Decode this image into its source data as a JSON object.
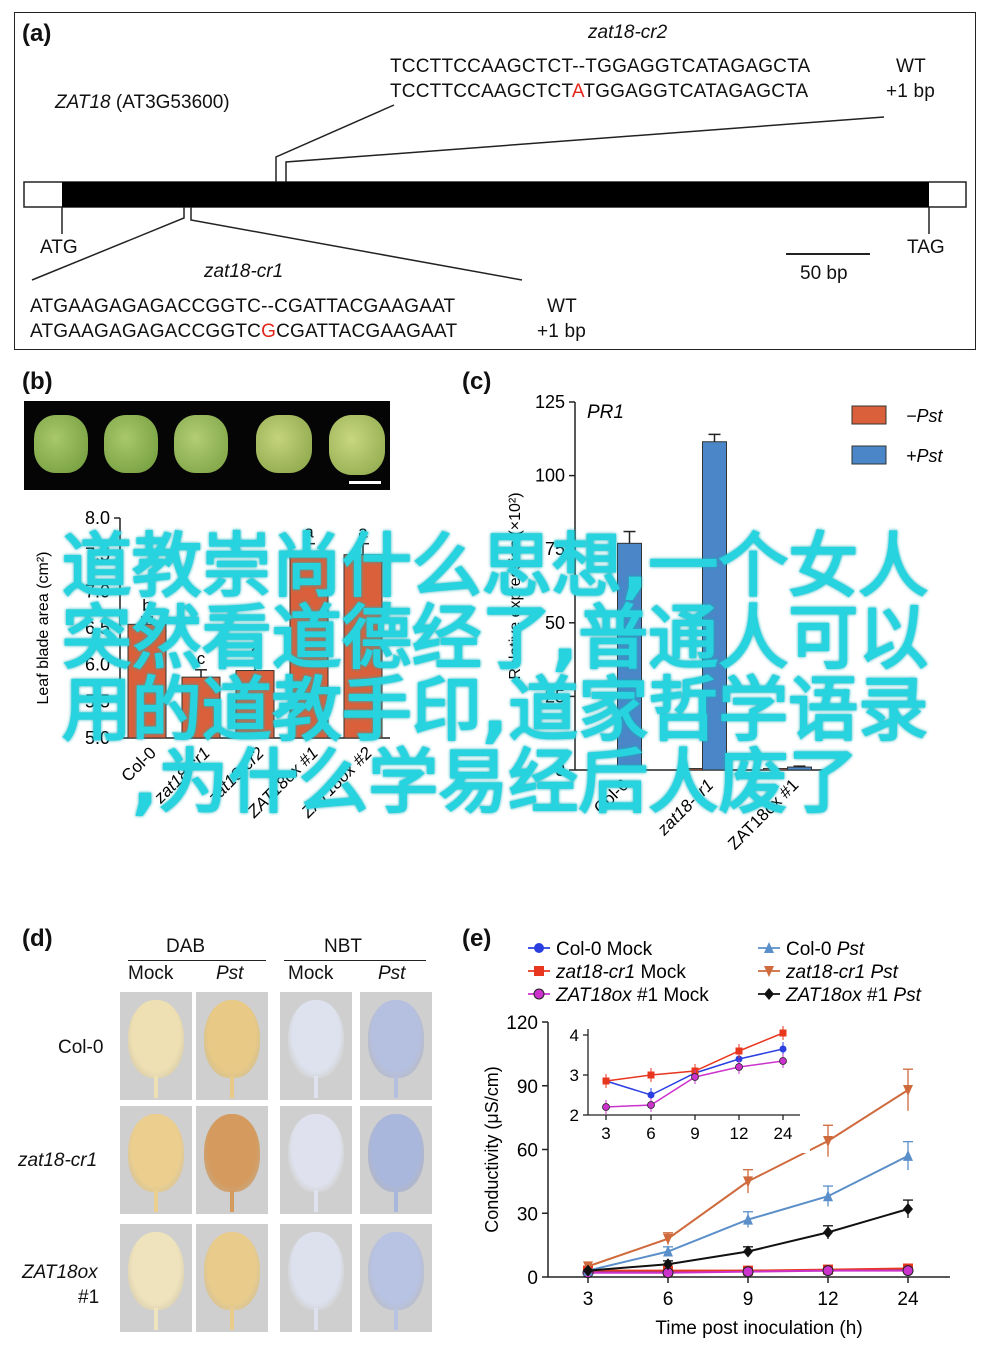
{
  "panels": {
    "a": "(a)",
    "b": "(b)",
    "c": "(c)",
    "d": "(d)",
    "e": "(e)"
  },
  "panel_a": {
    "gene_name": "ZAT18",
    "gene_locus": "(AT3G53600)",
    "start_codon": "ATG",
    "stop_codon": "TAG",
    "scale_bar": "50 bp",
    "cr2": {
      "name": "zat18-cr2",
      "wt_seq_left": "TCCTTCCAAGCTCT--TGGAGGTCATAGAGCTA",
      "mut_seq_left": "TCCTTCCAAGCTCT",
      "mut_insert": "A",
      "mut_seq_right": "TGGAGGTCATAGAGCTA",
      "wt_label": "WT",
      "mut_label": "+1 bp"
    },
    "cr1": {
      "name": "zat18-cr1",
      "wt_seq": "ATGAAGAGAGACCGGTC--CGATTACGAAGAAT",
      "mut_seq_left": "ATGAAGAGAGACCGGTC",
      "mut_insert": "G",
      "mut_seq_right": "CGATTACGAAGAAT",
      "wt_label": "WT",
      "mut_label": "+1 bp"
    }
  },
  "panel_b": {
    "chart_data": {
      "type": "bar",
      "categories": [
        "Col-0",
        "zat18-cr1",
        "zat18-cr2",
        "ZAT18ox #1",
        "ZAT18ox #2"
      ],
      "values": [
        6.55,
        5.83,
        5.92,
        7.5,
        7.5
      ],
      "errors": [
        0.1,
        0.1,
        0.1,
        0.15,
        0.15
      ],
      "letters": [
        "b",
        "c",
        "c",
        "a",
        "a"
      ],
      "ylabel": "Leaf blade area (cm²)",
      "ylim": [
        5.0,
        8.0
      ],
      "yticks": [
        "5.0",
        "5.5",
        "6.0",
        "6.5",
        "7.0",
        "7.5",
        "8.0"
      ],
      "color": "#d9603b"
    }
  },
  "panel_c": {
    "chart_data": {
      "type": "bar",
      "title": "PR1",
      "categories": [
        "Col-0",
        "zat18-cr1",
        "ZAT18ox #1"
      ],
      "series": [
        {
          "name": "−Pst",
          "color": "#d9603b",
          "values": [
            0.5,
            0.5,
            0.5
          ]
        },
        {
          "name": "+Pst",
          "color": "#4a86c8",
          "values": [
            77,
            111.5,
            1
          ]
        }
      ],
      "errors_plus": [
        4,
        2.5,
        0.3
      ],
      "ylabel": "Relative expression (×10²)",
      "ylim": [
        0,
        125
      ],
      "yticks": [
        "0",
        "25",
        "50",
        "75",
        "100",
        "125"
      ]
    }
  },
  "panel_d": {
    "group_dab": "DAB",
    "group_nbt": "NBT",
    "col_labels": [
      "Mock",
      "Pst",
      "Mock",
      "Pst"
    ],
    "row_labels": [
      "Col-0",
      "zat18-cr1",
      "ZAT18ox",
      "#1"
    ]
  },
  "panel_e": {
    "chart_data": {
      "type": "line",
      "x": [
        3,
        6,
        9,
        12,
        24
      ],
      "xticks": [
        "3",
        "6",
        "9",
        "12",
        "24"
      ],
      "xlabel": "Time post inoculation (h)",
      "ylabel": "Conductivity (μS/cm)",
      "ylim": [
        0,
        120
      ],
      "yticks": [
        "0",
        "30",
        "60",
        "90",
        "120"
      ],
      "series": [
        {
          "name_plain": "Col-0",
          "name_ital": "",
          "suffix": " Mock",
          "color": "#2a3fe0",
          "marker": "circle",
          "values": [
            2.5,
            2.5,
            3,
            3,
            3.5
          ]
        },
        {
          "name_plain": "",
          "name_ital": "zat18-cr1",
          "suffix": " Mock",
          "color": "#e8361f",
          "marker": "square",
          "values": [
            3,
            3,
            3,
            3.5,
            4
          ]
        },
        {
          "name_plain": "",
          "name_ital": "ZAT18ox",
          "suffix": " #1 Mock",
          "color": "#cc33cc",
          "marker": "circle-open",
          "values": [
            2,
            2,
            2.5,
            3,
            3
          ]
        },
        {
          "name_plain": "Col-0 ",
          "name_ital": "Pst",
          "suffix": "",
          "color": "#5b8fc9",
          "marker": "triangle-up",
          "values": [
            3,
            12,
            27,
            38,
            57
          ]
        },
        {
          "name_plain": "",
          "name_ital": "zat18-cr1 Pst",
          "suffix": "",
          "color": "#cf6a3c",
          "marker": "triangle-down",
          "values": [
            5,
            18,
            45,
            64,
            88
          ]
        },
        {
          "name_plain": "",
          "name_ital": "ZAT18ox",
          "suffix": " #1 ",
          "suffix_ital": "Pst",
          "color": "#111111",
          "marker": "diamond",
          "values": [
            3,
            6,
            12,
            21,
            32
          ]
        }
      ],
      "inset": {
        "ylim": [
          2,
          4
        ],
        "yticks": [
          "2",
          "3",
          "4"
        ],
        "xticks": [
          "3",
          "6",
          "9",
          "12",
          "24"
        ],
        "series": [
          {
            "color": "#2a3fe0",
            "values": [
              2.85,
              2.5,
              3.05,
              3.4,
              3.65
            ]
          },
          {
            "color": "#e8361f",
            "values": [
              2.85,
              3.0,
              3.1,
              3.6,
              4.05
            ]
          },
          {
            "color": "#cc33cc",
            "values": [
              2.2,
              2.25,
              2.95,
              3.2,
              3.35
            ]
          }
        ]
      }
    }
  },
  "overlay_text": [
    "道教崇尚什么思想,一个女人",
    "突然看道德经了,普通人可以",
    "用的道教手印,道家哲学语录",
    ",为什么学易经后人废了"
  ]
}
